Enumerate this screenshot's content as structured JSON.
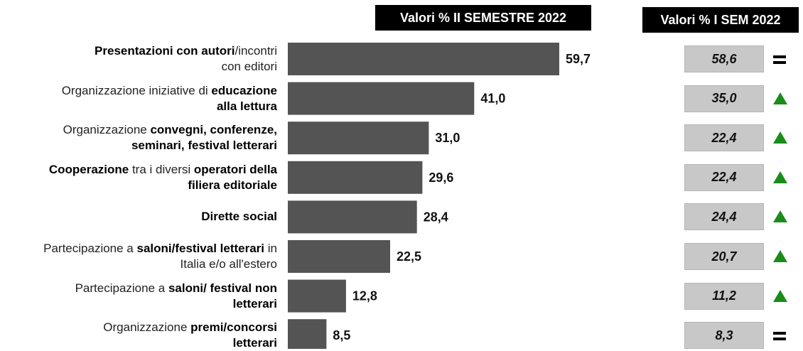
{
  "headers": {
    "main": "Valori % II SEMESTRE 2022",
    "prev": "Valori % I SEM 2022"
  },
  "colors": {
    "bar": "#545454",
    "trend_up": "#1a8c1a",
    "trend_equal": "#000000"
  },
  "chart_data": {
    "type": "bar",
    "orientation": "horizontal",
    "xlim": [
      0,
      62
    ],
    "grid": false,
    "categories": [
      "Presentazioni con autori/incontri con editori",
      "Organizzazione iniziative di educazione alla lettura",
      "Organizzazione convegni, conferenze, seminari, festival letterari",
      "Cooperazione tra i diversi operatori della filiera editoriale",
      "Dirette social",
      "Partecipazione a saloni/festival letterari in Italia e/o all'estero",
      "Partecipazione a saloni/ festival non letterari",
      "Organizzazione premi/concorsi letterari"
    ],
    "series": [
      {
        "name": "Valori % II SEMESTRE 2022",
        "values": [
          59.7,
          41.0,
          31.0,
          29.6,
          28.4,
          22.5,
          12.8,
          8.5
        ]
      },
      {
        "name": "Valori % I SEM 2022",
        "values": [
          58.6,
          35.0,
          22.4,
          22.4,
          24.4,
          20.7,
          11.2,
          8.3
        ]
      }
    ]
  },
  "rows": [
    {
      "label_parts": [
        {
          "t": "Presentazioni con autori",
          "b": true
        },
        {
          "t": "/incontri",
          "b": false
        },
        {
          "br": true
        },
        {
          "t": "con editori",
          "b": false
        }
      ],
      "value": "59,7",
      "prev": "58,6",
      "trend": "equal",
      "trend_icon": "equals-icon"
    },
    {
      "label_parts": [
        {
          "t": "Organizzazione iniziative di ",
          "b": false
        },
        {
          "t": "educazione",
          "b": true
        },
        {
          "br": true
        },
        {
          "t": "alla lettura",
          "b": true
        }
      ],
      "value": "41,0",
      "prev": "35,0",
      "trend": "up",
      "trend_icon": "triangle-up-icon"
    },
    {
      "label_parts": [
        {
          "t": "Organizzazione ",
          "b": false
        },
        {
          "t": "convegni, conferenze,",
          "b": true
        },
        {
          "br": true
        },
        {
          "t": "seminari, festival letterari",
          "b": true
        }
      ],
      "value": "31,0",
      "prev": "22,4",
      "trend": "up",
      "trend_icon": "triangle-up-icon"
    },
    {
      "label_parts": [
        {
          "t": "Cooperazione",
          "b": true
        },
        {
          "t": " tra i diversi ",
          "b": false
        },
        {
          "t": "operatori della",
          "b": true
        },
        {
          "br": true
        },
        {
          "t": "filiera editoriale",
          "b": true
        }
      ],
      "value": "29,6",
      "prev": "22,4",
      "trend": "up",
      "trend_icon": "triangle-up-icon"
    },
    {
      "label_parts": [
        {
          "t": "Dirette social",
          "b": true
        }
      ],
      "value": "28,4",
      "prev": "24,4",
      "trend": "up",
      "trend_icon": "triangle-up-icon"
    },
    {
      "label_parts": [
        {
          "t": "Partecipazione a ",
          "b": false
        },
        {
          "t": "saloni/festival letterari",
          "b": true
        },
        {
          "t": " in",
          "b": false
        },
        {
          "br": true
        },
        {
          "t": "Italia e/o all'estero",
          "b": false
        }
      ],
      "value": "22,5",
      "prev": "20,7",
      "trend": "up",
      "trend_icon": "triangle-up-icon"
    },
    {
      "label_parts": [
        {
          "t": "Partecipazione a ",
          "b": false
        },
        {
          "t": "saloni/ festival non",
          "b": true
        },
        {
          "br": true
        },
        {
          "t": "letterari",
          "b": true
        }
      ],
      "value": "12,8",
      "prev": "11,2",
      "trend": "up",
      "trend_icon": "triangle-up-icon"
    },
    {
      "label_parts": [
        {
          "t": "Organizzazione ",
          "b": false
        },
        {
          "t": "premi/concorsi",
          "b": true
        },
        {
          "br": true
        },
        {
          "t": "letterari",
          "b": true
        }
      ],
      "value": "8,5",
      "prev": "8,3",
      "trend": "equal",
      "trend_icon": "equals-icon"
    }
  ]
}
